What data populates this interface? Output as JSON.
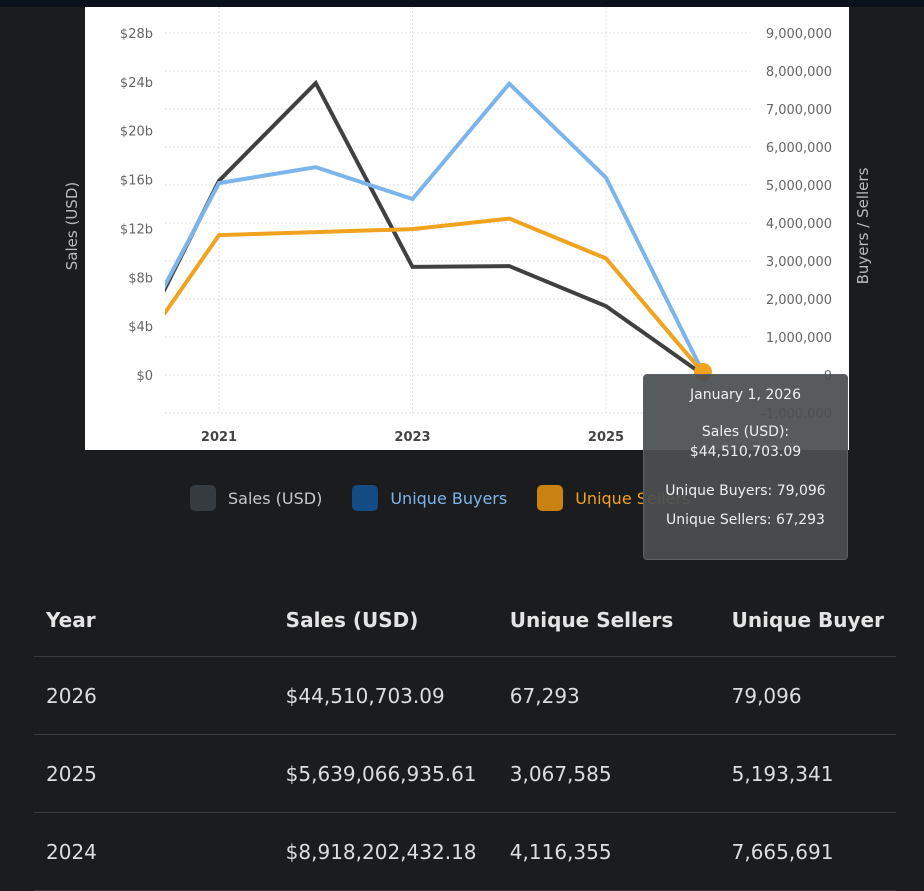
{
  "chart_data": {
    "type": "line",
    "x": [
      2020,
      2021,
      2022,
      2023,
      2024,
      2025,
      2026
    ],
    "x_ticks": [
      "2021",
      "2023",
      "2025"
    ],
    "series": [
      {
        "name": "Sales (USD)",
        "axis": "left",
        "color": "#404040",
        "values": [
          100000000,
          15900000000,
          23900000000,
          8850000000,
          8918202432.18,
          5639066935.61,
          44510703.09
        ]
      },
      {
        "name": "Unique Buyers",
        "axis": "right",
        "color": "#7cb5ec",
        "values": [
          240000,
          5050000,
          5470000,
          4630000,
          7665691,
          5193341,
          79096
        ]
      },
      {
        "name": "Unique Sellers",
        "axis": "right",
        "color": "#f1a21f",
        "values": [
          20000,
          3680000,
          3760000,
          3840000,
          4116355,
          3067585,
          67293
        ]
      }
    ],
    "ylabel_left": "Sales (USD)",
    "ylabel_right": "Buyers / Sellers",
    "y_left_ticks": [
      "$0",
      "$4b",
      "$8b",
      "$12b",
      "$16b",
      "$20b",
      "$24b",
      "$28b"
    ],
    "y_right_ticks": [
      "-1,000,000",
      "0",
      "1,000,000",
      "2,000,000",
      "3,000,000",
      "4,000,000",
      "5,000,000",
      "6,000,000",
      "7,000,000",
      "8,000,000",
      "9,000,000"
    ],
    "ylim_left": [
      -3100000000,
      28000000000
    ],
    "ylim_right": [
      -1000000,
      9000000
    ],
    "grid": true,
    "legend_position": "bottom",
    "legend_colors": {
      "Sales (USD)": "#363b3f",
      "Unique Buyers": "#144b85",
      "Unique Sellers": "#c98212"
    },
    "legend_text_colors": {
      "Sales (USD)": "#c8c8c8",
      "Unique Buyers": "#7cb5ec",
      "Unique Sellers": "#f1a21f"
    },
    "tooltip": {
      "date": "January 1, 2026",
      "sales_label": "Sales (USD):",
      "sales_value": "$44,510,703.09",
      "buyers": "Unique Buyers: 79,096",
      "sellers": "Unique Sellers: 67,293"
    }
  },
  "table": {
    "headers": [
      "Year",
      "Sales (USD)",
      "Unique Sellers",
      "Unique Buyer"
    ],
    "rows": [
      [
        "2026",
        "$44,510,703.09",
        "67,293",
        "79,096"
      ],
      [
        "2025",
        "$5,639,066,935.61",
        "3,067,585",
        "5,193,341"
      ],
      [
        "2024",
        "$8,918,202,432.18",
        "4,116,355",
        "7,665,691"
      ]
    ]
  }
}
